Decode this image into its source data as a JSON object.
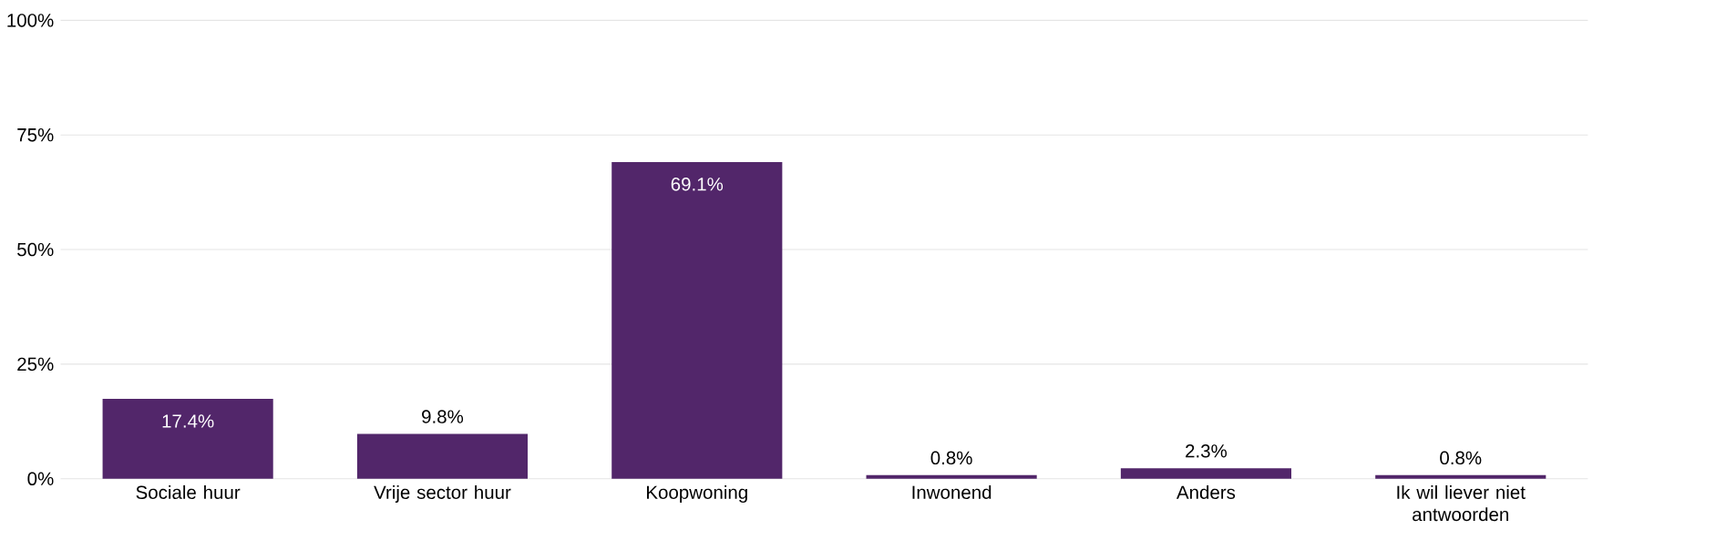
{
  "chart_data": {
    "type": "bar",
    "categories": [
      "Sociale huur",
      "Vrije sector huur",
      "Koopwoning",
      "Inwonend",
      "Anders",
      "Ik wil liever niet antwoorden"
    ],
    "values": [
      17.4,
      9.8,
      69.1,
      0.8,
      2.3,
      0.8
    ],
    "color": "#52266a",
    "ylim": [
      0,
      100
    ],
    "yticks": [
      {
        "value": 0,
        "label": "0%"
      },
      {
        "value": 25,
        "label": "25%"
      },
      {
        "value": 50,
        "label": "50%"
      },
      {
        "value": 75,
        "label": "75%"
      },
      {
        "value": 100,
        "label": "100%"
      }
    ],
    "grid": "y",
    "value_labels": [
      "17.4%",
      "9.8%",
      "69.1%",
      "0.8%",
      "2.3%",
      "0.8%"
    ]
  }
}
